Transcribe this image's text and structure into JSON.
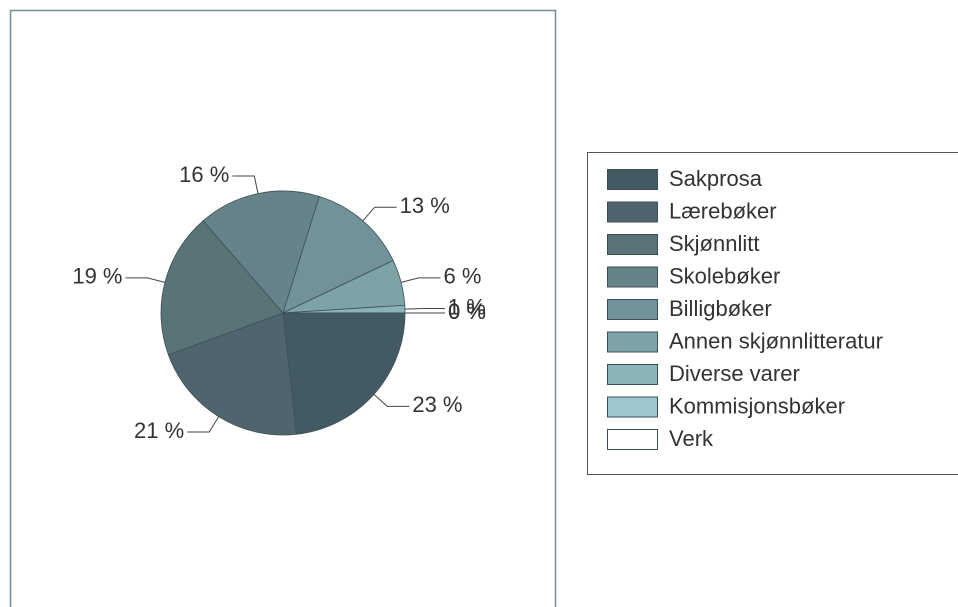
{
  "chart_data": {
    "type": "pie",
    "categories": [
      "Sakprosa",
      "Lærebøker",
      "Skjønnlitt",
      "Skolebøker",
      "Billigbøker",
      "Annen skjønnlitteratur",
      "Diverse varer",
      "Kommisjonsbøker",
      "Verk"
    ],
    "values": [
      23,
      21,
      19,
      16,
      13,
      6,
      1,
      0,
      0
    ],
    "value_labels": [
      "23 %",
      "21 %",
      "19 %",
      "16 %",
      "13 %",
      "6 %",
      "1 %",
      "0 %",
      "0 %"
    ],
    "colors": [
      "#435a62",
      "#4f646c",
      "#5a7379",
      "#658389",
      "#719298",
      "#7ea3a7",
      "#8ab4b7",
      "#9cc7cc",
      "#ffffff"
    ],
    "legend": "right"
  }
}
